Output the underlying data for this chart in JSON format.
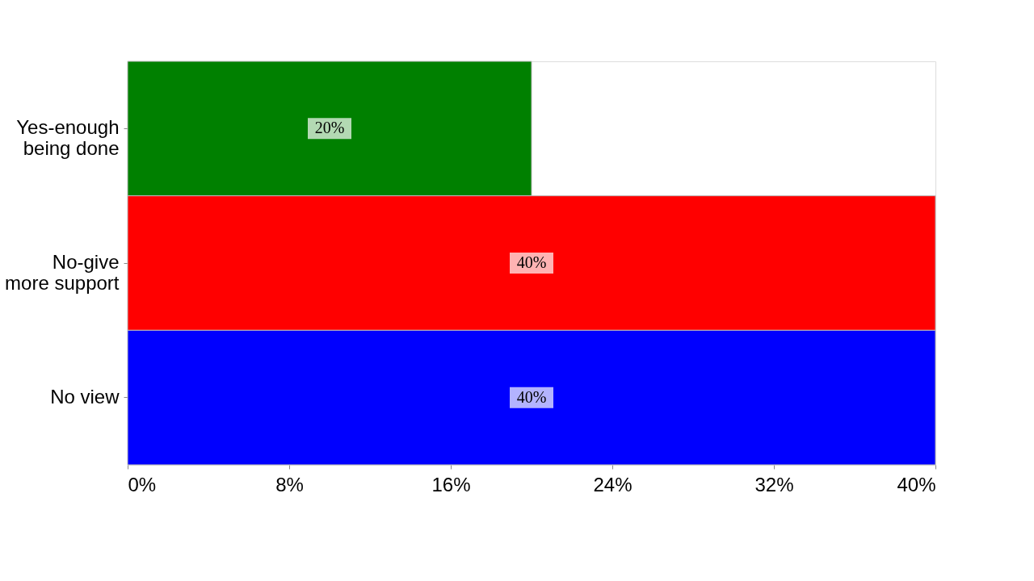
{
  "chart_data": {
    "type": "bar",
    "orientation": "horizontal",
    "categories": [
      "Yes-enough\nbeing done",
      "No-give\nmore support",
      "No view"
    ],
    "values": [
      20,
      40,
      40
    ],
    "colors": [
      "#008000",
      "#ff0000",
      "#0000ff"
    ],
    "value_labels": [
      "20%",
      "40%",
      "40%"
    ],
    "xlim": [
      0,
      40
    ],
    "xticks": [
      {
        "value": 0,
        "label": "0%"
      },
      {
        "value": 8,
        "label": "8%"
      },
      {
        "value": 16,
        "label": "16%"
      },
      {
        "value": 24,
        "label": "24%"
      },
      {
        "value": 32,
        "label": "32%"
      },
      {
        "value": 40,
        "label": "40%"
      }
    ],
    "grid": false
  }
}
